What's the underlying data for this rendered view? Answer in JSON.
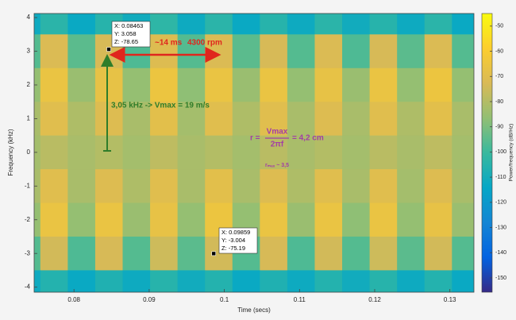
{
  "chart_data": {
    "type": "heatmap",
    "xlabel": "Time (secs)",
    "ylabel": "Frequency (kHz)",
    "colorbar_label": "Power/frequency (dB/Hz)",
    "x": [
      0.0737,
      0.07735,
      0.081,
      0.08465,
      0.0883,
      0.09195,
      0.0956,
      0.09925,
      0.1029,
      0.10655,
      0.1102,
      0.11385,
      0.1175,
      0.12115,
      0.1248,
      0.12845,
      0.1321
    ],
    "y": [
      4,
      3,
      2,
      1,
      0,
      -1,
      -2,
      -3,
      -4
    ],
    "z": [
      [
        -112,
        -104,
        -113,
        -105,
        -111,
        -103,
        -112,
        -104,
        -113,
        -105,
        -112,
        -104,
        -111,
        -105,
        -112,
        -104,
        -113
      ],
      [
        -96,
        -72,
        -95,
        -73,
        -97,
        -71,
        -96,
        -72,
        -95,
        -73,
        -96,
        -72,
        -97,
        -73,
        -95,
        -72,
        -96
      ],
      [
        -86,
        -66,
        -85,
        -67,
        -86,
        -65,
        -87,
        -66,
        -85,
        -66,
        -86,
        -67,
        -85,
        -66,
        -86,
        -65,
        -86
      ],
      [
        -82,
        -70,
        -81,
        -71,
        -82,
        -69,
        -83,
        -70,
        -81,
        -70,
        -82,
        -71,
        -82,
        -70,
        -81,
        -69,
        -82
      ],
      [
        -83,
        -79,
        -82,
        -80,
        -83,
        -78,
        -82,
        -80,
        -83,
        -79,
        -82,
        -80,
        -83,
        -79,
        -82,
        -78,
        -83
      ],
      [
        -82,
        -70,
        -82,
        -71,
        -81,
        -70,
        -82,
        -69,
        -82,
        -71,
        -81,
        -70,
        -82,
        -70,
        -83,
        -71,
        -82
      ],
      [
        -86,
        -66,
        -86,
        -66,
        -85,
        -67,
        -86,
        -65,
        -86,
        -66,
        -85,
        -66,
        -87,
        -66,
        -86,
        -67,
        -85
      ],
      [
        -96,
        -74,
        -97,
        -73,
        -96,
        -75,
        -95,
        -74,
        -96,
        -73,
        -97,
        -74,
        -96,
        -75,
        -95,
        -74,
        -96
      ],
      [
        -112,
        -106,
        -113,
        -107,
        -112,
        -105,
        -111,
        -106,
        -113,
        -107,
        -112,
        -106,
        -111,
        -105,
        -112,
        -106,
        -113
      ]
    ],
    "xlim": [
      0.0747,
      0.1332
    ],
    "ylim": [
      -4.15,
      4.12
    ],
    "xticks": [
      0.08,
      0.09,
      0.1,
      0.11,
      0.12,
      0.13
    ],
    "yticks": [
      -4,
      -3,
      -2,
      -1,
      0,
      1,
      2,
      3,
      4
    ],
    "clim": [
      -155.7,
      -45
    ],
    "cticks": [
      -50,
      -60,
      -70,
      -80,
      -90,
      -100,
      -110,
      -120,
      -130,
      -140,
      -150
    ],
    "colormap": [
      "#352a87",
      "#0363e1",
      "#1485d4",
      "#06a7c6",
      "#38b99e",
      "#92bf73",
      "#d9ba56",
      "#fcce2e",
      "#f9fb0e"
    ],
    "datatips": [
      {
        "x": 0.08463,
        "y": 3.058,
        "z": -78.65,
        "labels": [
          "X: 0.08463",
          "Y: 3.058",
          "Z: -78.65"
        ]
      },
      {
        "x": 0.09859,
        "y": -3.004,
        "z": -75.19,
        "labels": [
          "X: 0.09859",
          "Y: -3.004",
          "Z: -75.19"
        ]
      }
    ],
    "annotations": {
      "period": "~14 ms",
      "rpm": "4300 rpm",
      "velocity": "3,05 kHz -> Vmax = 19 m/s",
      "r_prefix": "r =",
      "numerator": "Vmax",
      "denominator": "2πf",
      "r_result": "= 4,2 cm",
      "r_max": "rₘₐₓ ~ 3,5"
    }
  }
}
